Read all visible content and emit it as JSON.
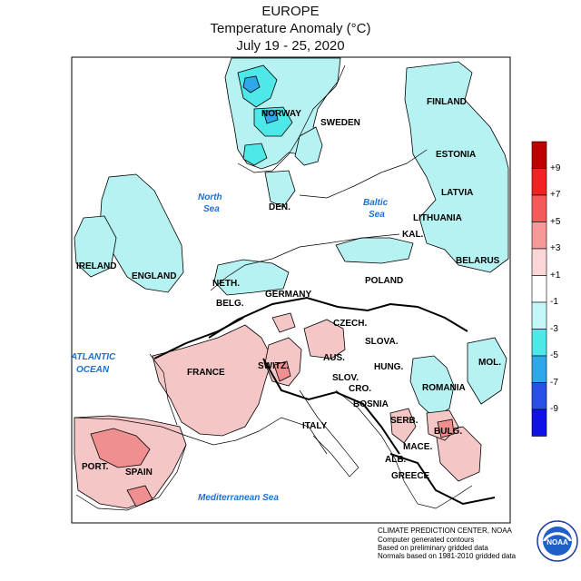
{
  "header": {
    "region": "EUROPE",
    "variable": "Temperature Anomaly (°C)",
    "period": "July 19 - 25, 2020"
  },
  "countries": {
    "norway": "NORWAY",
    "sweden": "SWEDEN",
    "finland": "FINLAND",
    "estonia": "ESTONIA",
    "latvia": "LATVIA",
    "lithuania": "LITHUANIA",
    "kal": "KAL.",
    "belarus": "BELARUS",
    "den": "DEN.",
    "ireland": "IRELAND",
    "england": "ENGLAND",
    "neth": "NETH.",
    "belg": "BELG.",
    "germany": "GERMANY",
    "poland": "POLAND",
    "czech": "CZECH.",
    "slova": "SLOVA.",
    "aus": "AUS.",
    "hung": "HUNG.",
    "switz": "SWITZ.",
    "slov": "SLOV.",
    "cro": "CRO.",
    "bosnia": "BOSNIA",
    "serb": "SERB.",
    "romania": "ROMANIA",
    "mol": "MOL.",
    "bulg": "BULG.",
    "mace": "MACE.",
    "alb": "ALB.",
    "greece": "GREECE",
    "france": "FRANCE",
    "italy": "ITALY",
    "spain": "SPAIN",
    "port": "PORT."
  },
  "seas": {
    "north_sea_1": "North",
    "north_sea_2": "Sea",
    "baltic_1": "Baltic",
    "baltic_2": "Sea",
    "atlantic_1": "ATLANTIC",
    "atlantic_2": "OCEAN",
    "med": "Mediterranean Sea"
  },
  "legend": {
    "bins": [
      {
        "color": "#c00000"
      },
      {
        "color": "#f22222"
      },
      {
        "color": "#f55a5a"
      },
      {
        "color": "#f79999"
      },
      {
        "color": "#fad6d6"
      },
      {
        "color": "#ffffff"
      },
      {
        "color": "#c4f7f7"
      },
      {
        "color": "#4fe8e8"
      },
      {
        "color": "#2ea8e8"
      },
      {
        "color": "#2a4fe8"
      },
      {
        "color": "#1010e8"
      }
    ],
    "labels": [
      "+9",
      "+7",
      "+5",
      "+3",
      "+1",
      "-1",
      "-3",
      "-5",
      "-7",
      "-9"
    ]
  },
  "footer": {
    "line1": "CLIMATE PREDICTION CENTER, NOAA",
    "line2": "Computer generated contours",
    "line3": "Based on preliminary gridded data",
    "line4": "Normals based on 1981-2010 gridded data"
  },
  "logo": {
    "text": "NOAA",
    "ring_top": "NATIONAL OCEANIC AND ATMOSPHERIC ADMINISTRATION",
    "ring_bottom": "U.S. DEPARTMENT OF COMMERCE"
  }
}
